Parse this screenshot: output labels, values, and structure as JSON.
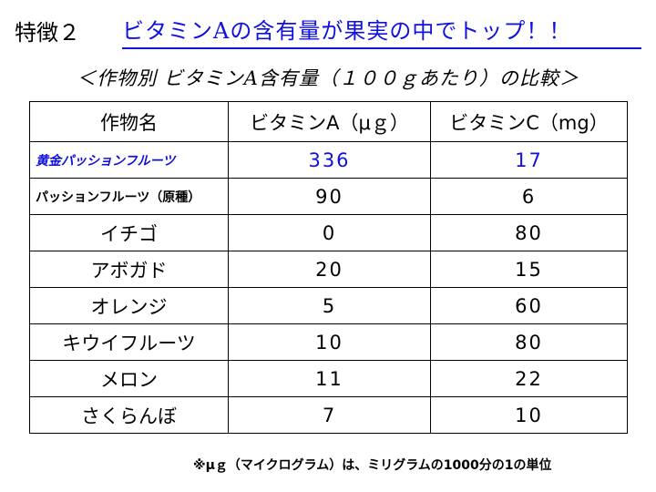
{
  "heading": {
    "label": "特徴２",
    "title": "ビタミンAの含有量が果実の中でトップ！！"
  },
  "subtitle": "＜作物別 ビタミンA含有量（１００ｇあたり）の比較＞",
  "table": {
    "headers": [
      "作物名",
      "ビタミンA（μｇ）",
      "ビタミンC（mg）"
    ],
    "rows": [
      {
        "name": "黄金パッションフルーツ",
        "vitamin_a": "336",
        "vitamin_c": "17"
      },
      {
        "name": "パッションフルーツ（原種）",
        "vitamin_a": "90",
        "vitamin_c": "6"
      },
      {
        "name": "イチゴ",
        "vitamin_a": "0",
        "vitamin_c": "80"
      },
      {
        "name": "アボガド",
        "vitamin_a": "20",
        "vitamin_c": "15"
      },
      {
        "name": "オレンジ",
        "vitamin_a": "5",
        "vitamin_c": "60"
      },
      {
        "name": "キウイフルーツ",
        "vitamin_a": "10",
        "vitamin_c": "80"
      },
      {
        "name": "メロン",
        "vitamin_a": "11",
        "vitamin_c": "22"
      },
      {
        "name": "さくらんぼ",
        "vitamin_a": "7",
        "vitamin_c": "10"
      }
    ]
  },
  "footnote": "※μｇ（マイクログラム）は、ミリグラムの1000分の1の単位",
  "colors": {
    "accent_blue": "#1010e0",
    "text": "#000000",
    "background": "#ffffff"
  }
}
